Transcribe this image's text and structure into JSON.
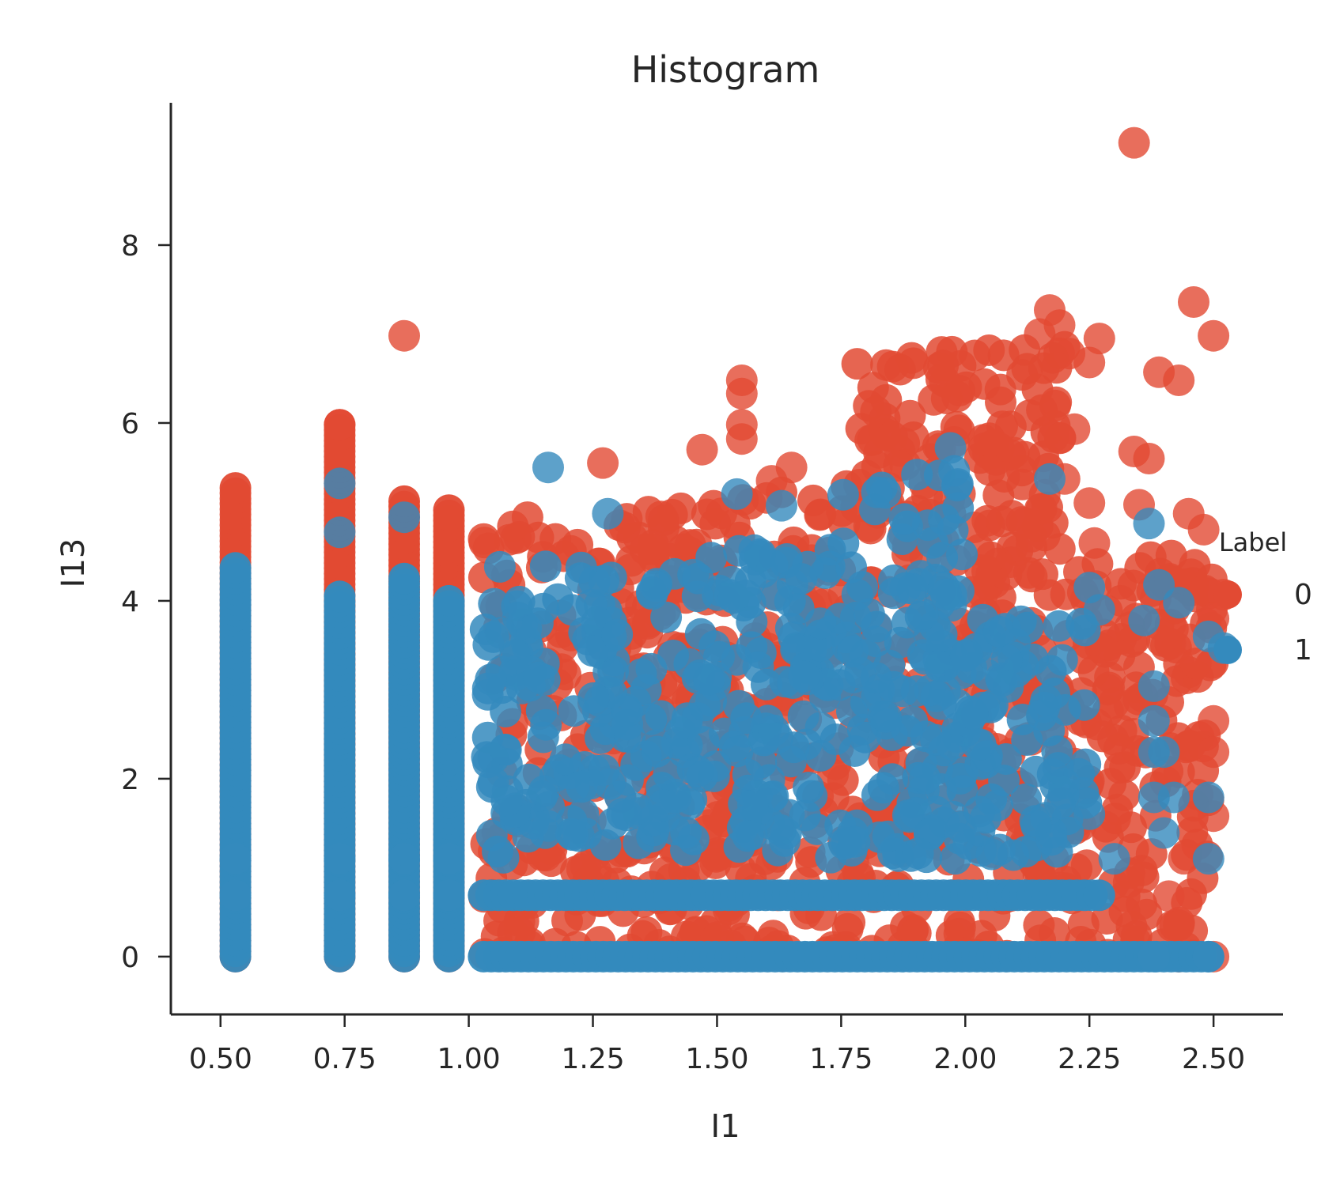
{
  "chart_data": {
    "type": "scatter",
    "title": "Histogram",
    "xlabel": "I1",
    "ylabel": "I13",
    "xlim": [
      0.4,
      2.64
    ],
    "ylim": [
      -0.65,
      9.6
    ],
    "xticks": [
      0.5,
      0.75,
      1.0,
      1.25,
      1.5,
      1.75,
      2.0,
      2.25,
      2.5
    ],
    "xtick_labels": [
      "0.50",
      "0.75",
      "1.00",
      "1.25",
      "1.50",
      "1.75",
      "2.00",
      "2.25",
      "2.50"
    ],
    "yticks": [
      0,
      2,
      4,
      6,
      8
    ],
    "ytick_labels": [
      "0",
      "2",
      "4",
      "6",
      "8"
    ],
    "grid": false,
    "legend": {
      "title": "Label",
      "placement": "right",
      "entries": [
        {
          "label": "0",
          "color": "#E24A33"
        },
        {
          "label": "1",
          "color": "#348ABD"
        }
      ]
    },
    "series": [
      {
        "label": "0",
        "color": "#E24A33",
        "columns": [
          {
            "x": 0.53,
            "ymin": 0,
            "ymax": 5.27
          },
          {
            "x": 0.74,
            "ymin": 0,
            "ymax": 5.98
          },
          {
            "x": 0.87,
            "ymin": 0,
            "ymax": 5.12
          },
          {
            "x": 0.96,
            "ymin": 0,
            "ymax": 5.02
          }
        ],
        "regions": [
          {
            "x_range": [
              1.03,
              1.5
            ],
            "y_range": [
              0,
              5.1
            ]
          },
          {
            "x_range": [
              1.5,
              1.78
            ],
            "y_range": [
              0,
              5.3
            ]
          },
          {
            "x_range": [
              1.78,
              2.2
            ],
            "y_range": [
              0,
              6.9
            ]
          },
          {
            "x_range": [
              2.2,
              2.5
            ],
            "y_range": [
              0,
              4.6
            ]
          }
        ],
        "points": [
          {
            "x": 0.87,
            "y": 6.98
          },
          {
            "x": 0.74,
            "y": 5.98
          },
          {
            "x": 1.55,
            "y": 6.48
          },
          {
            "x": 1.55,
            "y": 6.33
          },
          {
            "x": 1.55,
            "y": 5.98
          },
          {
            "x": 1.55,
            "y": 5.82
          },
          {
            "x": 1.47,
            "y": 5.7
          },
          {
            "x": 1.27,
            "y": 5.55
          },
          {
            "x": 1.65,
            "y": 5.5
          },
          {
            "x": 1.61,
            "y": 5.35
          },
          {
            "x": 2.17,
            "y": 7.27
          },
          {
            "x": 2.19,
            "y": 7.1
          },
          {
            "x": 2.15,
            "y": 7.0
          },
          {
            "x": 2.21,
            "y": 6.78
          },
          {
            "x": 2.25,
            "y": 6.68
          },
          {
            "x": 2.27,
            "y": 6.95
          },
          {
            "x": 2.34,
            "y": 9.15
          },
          {
            "x": 2.46,
            "y": 7.36
          },
          {
            "x": 2.5,
            "y": 6.98
          },
          {
            "x": 2.39,
            "y": 6.57
          },
          {
            "x": 2.43,
            "y": 6.48
          },
          {
            "x": 2.22,
            "y": 5.93
          },
          {
            "x": 2.34,
            "y": 5.68
          },
          {
            "x": 2.37,
            "y": 5.6
          },
          {
            "x": 2.2,
            "y": 5.37
          },
          {
            "x": 2.25,
            "y": 5.1
          },
          {
            "x": 2.35,
            "y": 5.08
          },
          {
            "x": 2.45,
            "y": 4.98
          },
          {
            "x": 2.48,
            "y": 4.8
          },
          {
            "x": 2.26,
            "y": 4.65
          },
          {
            "x": 2.52,
            "y": 4.07
          },
          {
            "x": 2.5,
            "y": 3.8
          },
          {
            "x": 2.5,
            "y": 2.65
          },
          {
            "x": 2.5,
            "y": 2.3
          },
          {
            "x": 2.5,
            "y": 1.58
          },
          {
            "x": 2.41,
            "y": 0.68
          },
          {
            "x": 2.44,
            "y": 1.1
          },
          {
            "x": 2.43,
            "y": 0
          },
          {
            "x": 2.5,
            "y": 0
          }
        ]
      },
      {
        "label": "1",
        "color": "#348ABD",
        "columns": [
          {
            "x": 0.53,
            "ymin": 0,
            "ymax": 4.37
          },
          {
            "x": 0.74,
            "ymin": 0,
            "ymax": 4.05
          },
          {
            "x": 0.87,
            "ymin": 0,
            "ymax": 4.25
          },
          {
            "x": 0.96,
            "ymin": 0,
            "ymax": 4.0
          }
        ],
        "regions": [
          {
            "x_range": [
              1.03,
              1.45
            ],
            "y_range": [
              1.1,
              4.4
            ]
          },
          {
            "x_range": [
              1.45,
              1.75
            ],
            "y_range": [
              1.1,
              4.6
            ]
          },
          {
            "x_range": [
              1.75,
              2.0
            ],
            "y_range": [
              1.1,
              5.5
            ]
          },
          {
            "x_range": [
              2.0,
              2.25
            ],
            "y_range": [
              1.1,
              3.8
            ]
          }
        ],
        "rows": [
          {
            "y": 0,
            "x_range": [
              1.03,
              2.49
            ]
          },
          {
            "y": 0.69,
            "x_range": [
              1.03,
              2.27
            ]
          }
        ],
        "points": [
          {
            "x": 0.53,
            "y": 0.69
          },
          {
            "x": 0.74,
            "y": 0.69
          },
          {
            "x": 0.87,
            "y": 0.69
          },
          {
            "x": 0.96,
            "y": 0.69
          },
          {
            "x": 0.53,
            "y": 1.1
          },
          {
            "x": 0.74,
            "y": 1.1
          },
          {
            "x": 0.87,
            "y": 1.1
          },
          {
            "x": 0.96,
            "y": 1.1
          },
          {
            "x": 0.74,
            "y": 4.77
          },
          {
            "x": 0.74,
            "y": 5.32
          },
          {
            "x": 0.87,
            "y": 4.94
          },
          {
            "x": 1.16,
            "y": 5.5
          },
          {
            "x": 1.54,
            "y": 5.2
          },
          {
            "x": 1.63,
            "y": 5.07
          },
          {
            "x": 1.28,
            "y": 4.98
          },
          {
            "x": 1.97,
            "y": 5.72
          },
          {
            "x": 2.17,
            "y": 5.37
          },
          {
            "x": 2.37,
            "y": 4.87
          },
          {
            "x": 2.39,
            "y": 4.18
          },
          {
            "x": 2.43,
            "y": 3.98
          },
          {
            "x": 2.49,
            "y": 3.6
          },
          {
            "x": 2.52,
            "y": 3.47
          },
          {
            "x": 2.36,
            "y": 3.78
          },
          {
            "x": 2.38,
            "y": 3.04
          },
          {
            "x": 2.38,
            "y": 2.65
          },
          {
            "x": 2.38,
            "y": 2.3
          },
          {
            "x": 2.4,
            "y": 2.3
          },
          {
            "x": 2.38,
            "y": 1.79
          },
          {
            "x": 2.42,
            "y": 1.79
          },
          {
            "x": 2.49,
            "y": 1.79
          },
          {
            "x": 2.4,
            "y": 1.39
          },
          {
            "x": 2.49,
            "y": 1.1
          },
          {
            "x": 2.25,
            "y": 1.6
          },
          {
            "x": 2.25,
            "y": 4.15
          },
          {
            "x": 2.27,
            "y": 3.9
          },
          {
            "x": 2.3,
            "y": 1.1
          },
          {
            "x": 2.38,
            "y": 0
          },
          {
            "x": 2.49,
            "y": 0
          }
        ]
      }
    ]
  }
}
